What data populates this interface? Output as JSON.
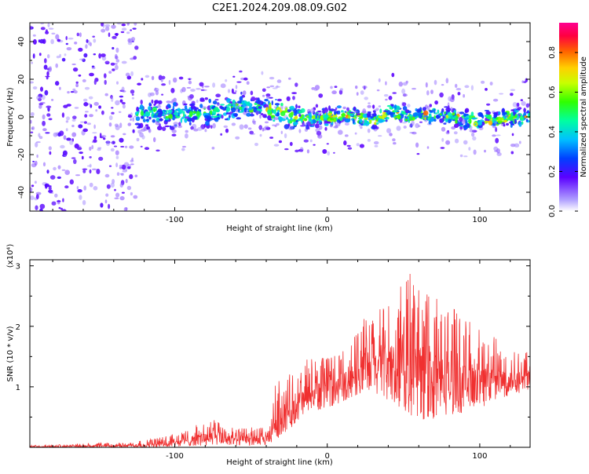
{
  "title": "C2E1.2024.209.08.09.G02",
  "chart_data": [
    {
      "type": "heatmap",
      "xlabel": "Height of straight line (km)",
      "ylabel": "Frequency (Hz)",
      "xlim": [
        -195,
        133
      ],
      "ylim": [
        -50,
        50
      ],
      "x_ticks": [
        -100,
        0,
        100
      ],
      "y_ticks": [
        -40,
        -20,
        0,
        20,
        40
      ],
      "colorbar": {
        "label": "Normalized spectral amplitude",
        "ticks": [
          "0.0",
          "0.2",
          "0.4",
          "0.6",
          "0.8"
        ],
        "range": [
          0,
          0.95
        ],
        "colormap": "rainbow"
      },
      "band_centerline": [
        [
          -150,
          0
        ],
        [
          -120,
          2
        ],
        [
          -90,
          1
        ],
        [
          -70,
          3
        ],
        [
          -55,
          6
        ],
        [
          -40,
          4
        ],
        [
          -30,
          2
        ],
        [
          -20,
          0
        ],
        [
          -10,
          -1
        ],
        [
          0,
          0
        ],
        [
          10,
          1
        ],
        [
          20,
          0
        ],
        [
          30,
          -2
        ],
        [
          42,
          3
        ],
        [
          55,
          0
        ],
        [
          70,
          1
        ],
        [
          85,
          -1
        ],
        [
          95,
          -2
        ],
        [
          110,
          -1
        ],
        [
          125,
          0
        ],
        [
          133,
          0
        ]
      ]
    },
    {
      "type": "line",
      "xlabel": "Height of straight line (km)",
      "ylabel": "SNR (10 * v/v)",
      "y_multiplier": "(x10⁴)",
      "xlim": [
        -195,
        133
      ],
      "ylim": [
        0,
        3.1
      ],
      "x_ticks": [
        -100,
        0,
        100
      ],
      "y_ticks": [
        1,
        2,
        3
      ],
      "color": "#f03030",
      "envelope": {
        "x": [
          -195,
          -170,
          -150,
          -130,
          -120,
          -105,
          -90,
          -75,
          -60,
          -45,
          -38,
          -35,
          -25,
          -15,
          -5,
          5,
          15,
          25,
          35,
          45,
          55,
          65,
          75,
          85,
          95,
          105,
          115,
          125,
          133
        ],
        "low": [
          0.0,
          0.0,
          0.0,
          0.0,
          0.0,
          0.0,
          0.02,
          0.03,
          0.03,
          0.02,
          0.02,
          0.1,
          0.3,
          0.5,
          0.6,
          0.7,
          0.8,
          0.9,
          0.85,
          0.7,
          0.5,
          0.45,
          0.5,
          0.55,
          0.6,
          0.7,
          0.8,
          0.9,
          0.9
        ],
        "high": [
          0.03,
          0.05,
          0.07,
          0.07,
          0.12,
          0.18,
          0.32,
          0.45,
          0.3,
          0.35,
          0.3,
          1.0,
          1.2,
          1.4,
          1.45,
          1.5,
          1.75,
          2.1,
          2.3,
          2.5,
          2.95,
          2.5,
          2.35,
          2.2,
          2.05,
          1.9,
          1.75,
          1.6,
          1.55
        ]
      }
    }
  ]
}
